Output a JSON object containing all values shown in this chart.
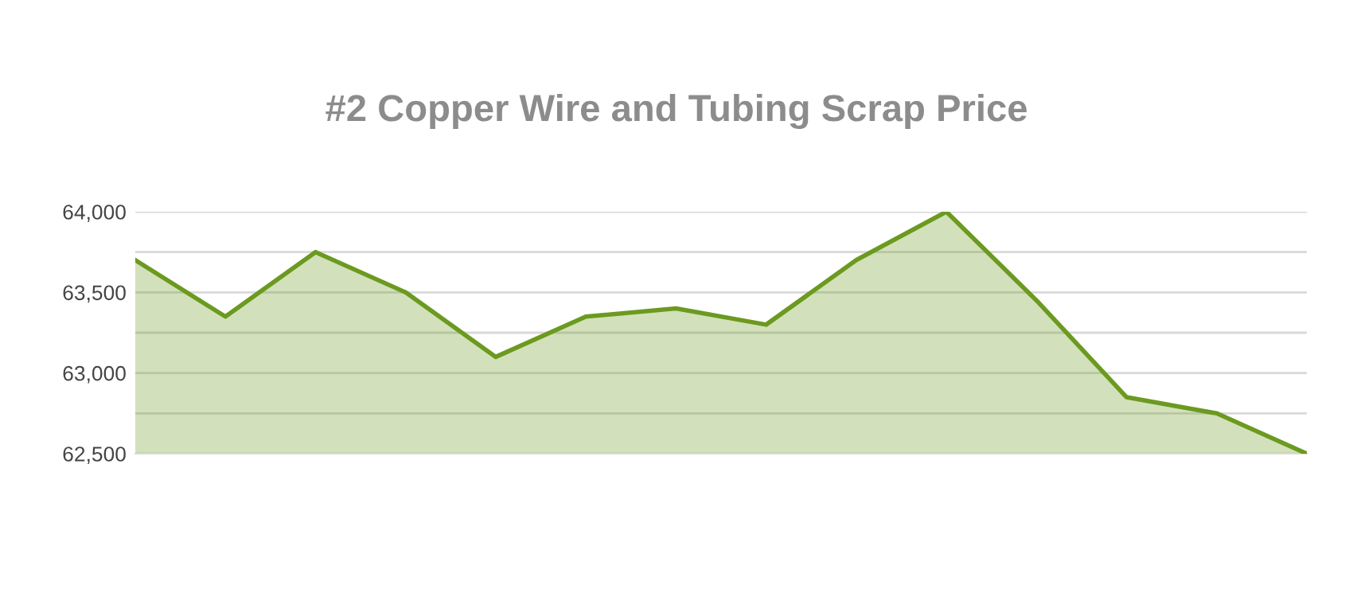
{
  "chart_data": {
    "type": "area",
    "title": "#2 Copper Wire and Tubing Scrap Price",
    "categories": [
      null,
      null,
      null,
      null,
      null,
      null,
      null,
      null,
      null,
      null,
      null,
      null,
      null,
      null
    ],
    "series": [
      {
        "color": "#6b9a1f",
        "values": [
          63700,
          63350,
          63750,
          63500,
          63100,
          63350,
          63400,
          63300,
          63700,
          64000,
          63450,
          62850,
          62750,
          62500
        ]
      }
    ],
    "ylim": [
      62500,
      64000
    ],
    "yticks": [
      {
        "value": 62500,
        "label": "62,500"
      },
      {
        "value": 62750,
        "label": null
      },
      {
        "value": 63000,
        "label": "63,000"
      },
      {
        "value": 63250,
        "label": null
      },
      {
        "value": 63500,
        "label": "63,500"
      },
      {
        "value": 63750,
        "label": null
      },
      {
        "value": 64000,
        "label": "64,000"
      }
    ],
    "grid": "y",
    "marker": "none",
    "line_style": "solid"
  }
}
